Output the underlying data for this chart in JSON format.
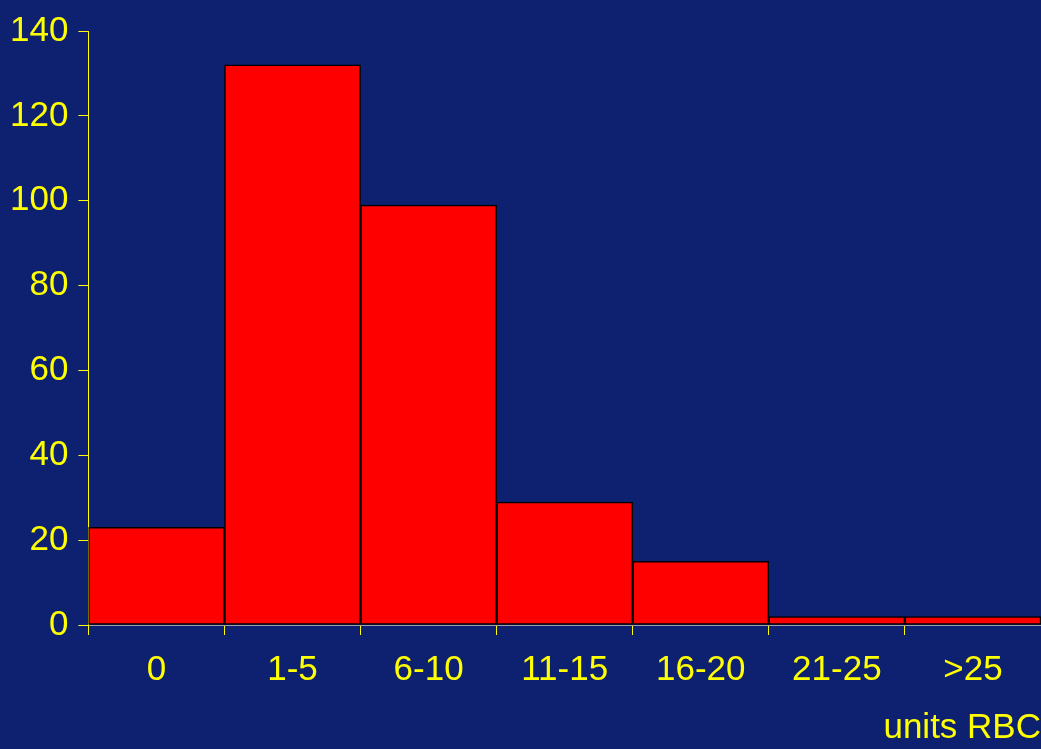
{
  "chart_data": {
    "type": "bar",
    "xlabel": "units RBC",
    "categories": [
      "0",
      "1-5",
      "6-10",
      "11-15",
      "16-20",
      "21-25",
      ">25"
    ],
    "values": [
      23,
      132,
      99,
      29,
      15,
      2,
      2
    ],
    "color": "#ff0000",
    "ylim": [
      0,
      140
    ],
    "yticks": [
      0,
      20,
      40,
      60,
      80,
      100,
      120,
      140
    ],
    "grid": false,
    "legend": false
  }
}
